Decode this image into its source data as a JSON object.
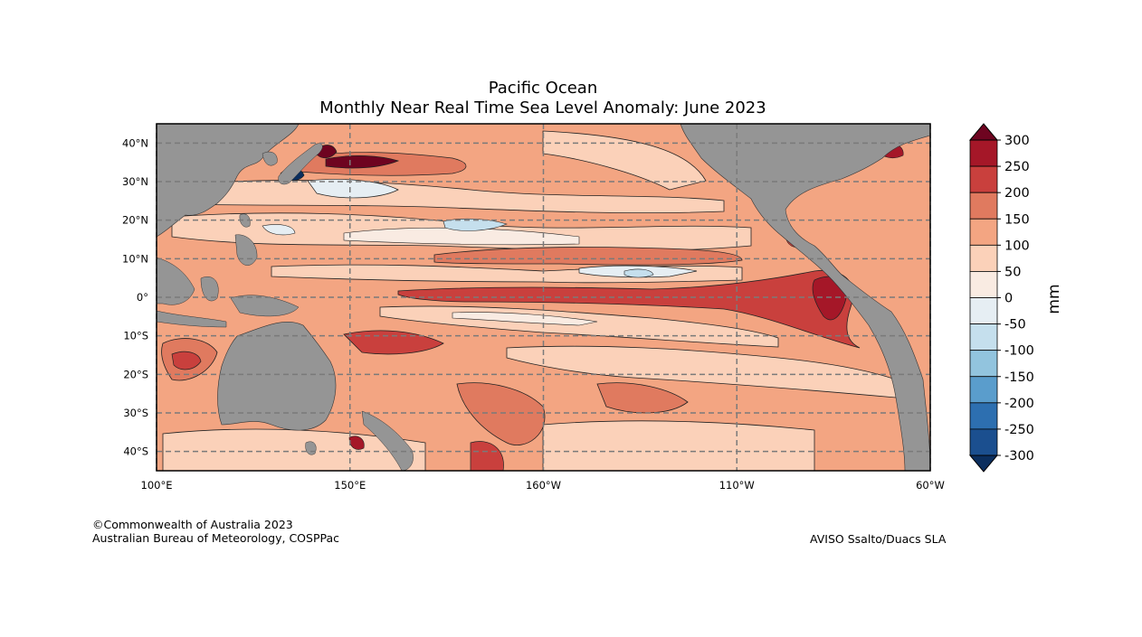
{
  "title_line1": "Pacific Ocean",
  "title_line2": "Monthly Near Real Time Sea Level Anomaly: June 2023",
  "map": {
    "lat_labels": [
      "40°N",
      "30°N",
      "20°N",
      "10°N",
      "0°",
      "10°S",
      "20°S",
      "30°S",
      "40°S"
    ],
    "lat_values": [
      40,
      30,
      20,
      10,
      0,
      -10,
      -20,
      -30,
      -40
    ],
    "lon_labels": [
      "100°E",
      "150°E",
      "160°W",
      "110°W",
      "60°W"
    ],
    "lon_values": [
      100,
      150,
      200,
      250,
      300
    ],
    "lon_range": [
      100,
      300
    ],
    "lat_range": [
      -45,
      45
    ],
    "grid_style": "dashed",
    "land_color": "#959595"
  },
  "colorbar": {
    "unit_label": "mm",
    "tick_labels": [
      "300",
      "250",
      "200",
      "150",
      "100",
      "50",
      "0",
      "-50",
      "-100",
      "-150",
      "-200",
      "-250",
      "-300"
    ],
    "levels": [
      300,
      250,
      200,
      150,
      100,
      50,
      0,
      -50,
      -100,
      -150,
      -200,
      -250,
      -300
    ],
    "band_colors": [
      "#a51728",
      "#c9403d",
      "#e07a5f",
      "#f3a582",
      "#fbd1b9",
      "#f9ebe2",
      "#e6eef3",
      "#c5dfed",
      "#92c4de",
      "#5a9dcc",
      "#2d6fb0",
      "#1b4f8f"
    ],
    "extend_high_color": "#6e0420",
    "extend_low_color": "#0b2e5e"
  },
  "credits": {
    "line1": "©Commonwealth of Australia 2023",
    "line2": "Australian Bureau of Meteorology, COSPPac",
    "source": "AVISO Ssalto/Duacs SLA"
  }
}
